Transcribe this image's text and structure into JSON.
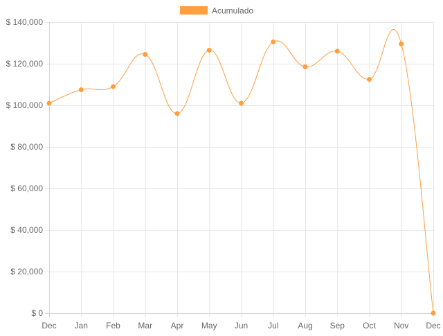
{
  "chart_data": {
    "type": "line",
    "title": "",
    "xlabel": "",
    "ylabel": "",
    "categories": [
      "Dec",
      "Jan",
      "Feb",
      "Mar",
      "Apr",
      "May",
      "Jun",
      "Jul",
      "Aug",
      "Sep",
      "Oct",
      "Nov",
      "Dec"
    ],
    "series": [
      {
        "name": "Acumulado",
        "color": "#ff9f40",
        "values": [
          101000,
          107500,
          109000,
          124500,
          96000,
          126500,
          101000,
          130500,
          118500,
          126000,
          112500,
          129500,
          0
        ]
      }
    ],
    "ylim": [
      0,
      140000
    ],
    "yticks": [
      0,
      20000,
      40000,
      60000,
      80000,
      100000,
      120000,
      140000
    ],
    "ytick_labels": [
      "$ 0",
      "$ 20,000",
      "$ 40,000",
      "$ 60,000",
      "$ 80,000",
      "$ 100,000",
      "$ 120,000",
      "$ 140,000"
    ],
    "grid": true,
    "legend": "top-center",
    "curve": "smooth"
  }
}
